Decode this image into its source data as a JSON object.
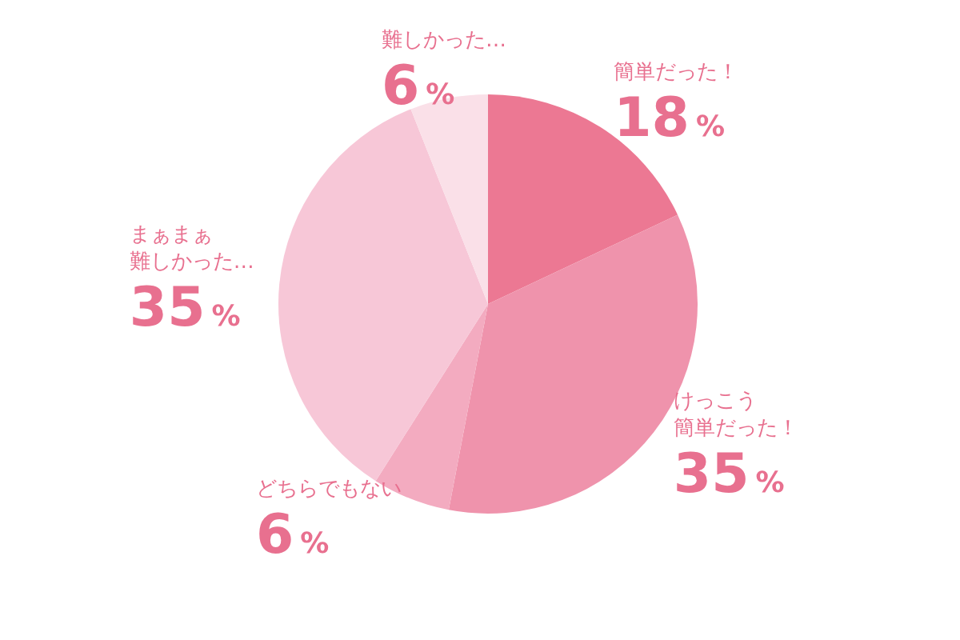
{
  "chart_data": {
    "type": "pie",
    "categories": [
      "簡単だった！",
      "けっこう簡単だった！",
      "どちらでもない",
      "まぁまぁ難しかった…",
      "難しかった…"
    ],
    "values": [
      18,
      35,
      6,
      35,
      6
    ],
    "value_labels": [
      "18%",
      "35%",
      "6%",
      "35%",
      "6%"
    ],
    "colors": [
      "#ec7893",
      "#ef93ac",
      "#f3abc0",
      "#f7c7d7",
      "#fae0e8"
    ],
    "legend": false
  }
}
